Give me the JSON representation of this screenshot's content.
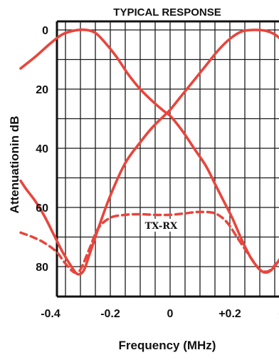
{
  "chart_data": {
    "type": "line",
    "title": "TYPICAL RESPONSE",
    "xlabel": "Frequency (MHz)",
    "ylabel": "Attenuationin dB",
    "xlim": [
      -0.5,
      0.5
    ],
    "ylim": [
      0,
      90
    ],
    "y_inverted": true,
    "grid": true,
    "x_ticks": [
      {
        "value": -0.4,
        "label": "-0.4"
      },
      {
        "value": -0.2,
        "label": "-0.2"
      },
      {
        "value": 0,
        "label": "0"
      },
      {
        "value": 0.2,
        "label": "+0.2"
      },
      {
        "value": 0.4,
        "label": "+0.4"
      }
    ],
    "y_ticks": [
      {
        "value": 0,
        "label": "0"
      },
      {
        "value": 20,
        "label": "20"
      },
      {
        "value": 40,
        "label": "40"
      },
      {
        "value": 60,
        "label": "60"
      },
      {
        "value": 80,
        "label": "80"
      }
    ],
    "annotation": {
      "text": "TX-RX",
      "x": -0.03,
      "y": 66
    },
    "series": [
      {
        "style": "solid",
        "color": "#e8453c",
        "points": [
          [
            -0.5,
            13
          ],
          [
            -0.45,
            9
          ],
          [
            -0.4,
            4.5
          ],
          [
            -0.36,
            1.5
          ],
          [
            -0.32,
            0.2
          ],
          [
            -0.28,
            0
          ],
          [
            -0.25,
            1
          ],
          [
            -0.22,
            4
          ],
          [
            -0.18,
            9
          ],
          [
            -0.14,
            15
          ],
          [
            -0.1,
            20
          ],
          [
            -0.06,
            24
          ],
          [
            -0.02,
            27.5
          ],
          [
            0,
            29
          ],
          [
            0.04,
            34
          ],
          [
            0.08,
            40
          ],
          [
            0.12,
            46
          ],
          [
            0.15,
            52
          ],
          [
            0.18,
            58
          ],
          [
            0.21,
            64
          ],
          [
            0.24,
            71
          ],
          [
            0.27,
            77
          ],
          [
            0.3,
            81
          ],
          [
            0.32,
            82
          ],
          [
            0.34,
            81
          ],
          [
            0.37,
            77
          ],
          [
            0.4,
            72
          ],
          [
            0.43,
            67
          ],
          [
            0.46,
            64
          ],
          [
            0.5,
            62
          ]
        ]
      },
      {
        "style": "solid",
        "color": "#e8453c",
        "points": [
          [
            -0.5,
            51
          ],
          [
            -0.48,
            54
          ],
          [
            -0.45,
            58
          ],
          [
            -0.42,
            63
          ],
          [
            -0.39,
            69
          ],
          [
            -0.36,
            75
          ],
          [
            -0.33,
            80
          ],
          [
            -0.31,
            82.5
          ],
          [
            -0.29,
            81.5
          ],
          [
            -0.27,
            76
          ],
          [
            -0.24,
            67
          ],
          [
            -0.2,
            56
          ],
          [
            -0.15,
            45
          ],
          [
            -0.1,
            38
          ],
          [
            -0.06,
            33
          ],
          [
            -0.02,
            29
          ],
          [
            0,
            27
          ],
          [
            0.04,
            22
          ],
          [
            0.08,
            17
          ],
          [
            0.12,
            12
          ],
          [
            0.16,
            7
          ],
          [
            0.2,
            3
          ],
          [
            0.24,
            0.5
          ],
          [
            0.28,
            0
          ],
          [
            0.32,
            0.3
          ],
          [
            0.35,
            1.5
          ],
          [
            0.38,
            4
          ],
          [
            0.41,
            6.5
          ],
          [
            0.44,
            8.5
          ],
          [
            0.47,
            10
          ],
          [
            0.5,
            11
          ]
        ]
      },
      {
        "style": "dashed",
        "color": "#e8453c",
        "points": [
          [
            -0.5,
            68.5
          ],
          [
            -0.46,
            70
          ],
          [
            -0.42,
            72
          ],
          [
            -0.38,
            75
          ],
          [
            -0.35,
            79
          ],
          [
            -0.32,
            82
          ],
          [
            -0.3,
            81
          ],
          [
            -0.27,
            74
          ],
          [
            -0.24,
            67
          ],
          [
            -0.2,
            63.5
          ],
          [
            -0.15,
            62.5
          ],
          [
            -0.1,
            62.3
          ],
          [
            -0.05,
            62.5
          ],
          [
            0,
            62.5
          ],
          [
            0.05,
            62
          ],
          [
            0.1,
            61.5
          ],
          [
            0.15,
            62
          ],
          [
            0.19,
            65
          ],
          [
            0.23,
            71
          ],
          [
            0.27,
            77
          ],
          [
            0.3,
            81
          ],
          [
            0.33,
            81.5
          ],
          [
            0.36,
            78.5
          ],
          [
            0.4,
            75
          ],
          [
            0.44,
            72
          ],
          [
            0.48,
            70
          ],
          [
            0.5,
            69
          ]
        ]
      }
    ]
  }
}
